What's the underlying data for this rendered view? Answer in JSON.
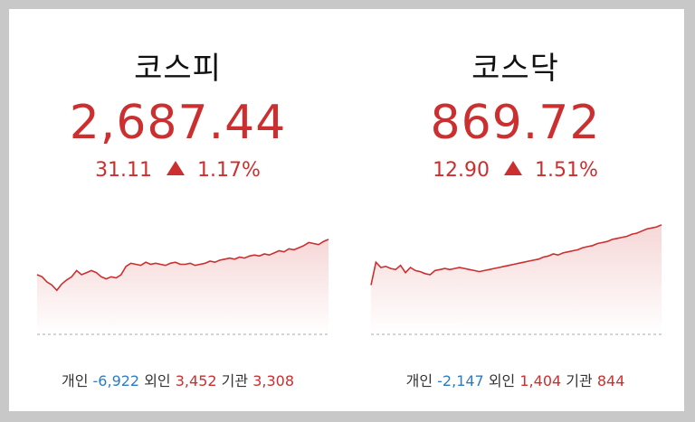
{
  "colors": {
    "up": "#cc2f2f",
    "down": "#2d7cc2",
    "text": "#333333"
  },
  "kospi": {
    "name": "코스피",
    "price": "2,687.44",
    "change": "31.11",
    "percent": "1.17%",
    "direction": "up",
    "investors": {
      "individual_label": "개인",
      "individual": "-6,922",
      "foreign_label": "외인",
      "foreign": "3,452",
      "institution_label": "기관",
      "institution": "3,308"
    }
  },
  "kosdaq": {
    "name": "코스닥",
    "price": "869.72",
    "change": "12.90",
    "percent": "1.51%",
    "direction": "up",
    "investors": {
      "individual_label": "개인",
      "individual": "-2,147",
      "foreign_label": "외인",
      "foreign": "1,404",
      "institution_label": "기관",
      "institution": "844"
    }
  },
  "chart_data": [
    {
      "type": "area",
      "series": [
        {
          "values": [
            40,
            38,
            33,
            30,
            25,
            31,
            35,
            38,
            44,
            40,
            42,
            44,
            42,
            38,
            36,
            38,
            37,
            40,
            48,
            51,
            50,
            49,
            52,
            50,
            51,
            50,
            49,
            51,
            52,
            50,
            50,
            51,
            49,
            50,
            51,
            53,
            52,
            54,
            55,
            56,
            55,
            57,
            56,
            58,
            59,
            58,
            60,
            59,
            61,
            63,
            62,
            65,
            64,
            66,
            68,
            71,
            70,
            69,
            72,
            74
          ]
        }
      ]
    },
    {
      "type": "area",
      "series": [
        {
          "values": [
            30,
            52,
            47,
            48,
            46,
            45,
            49,
            42,
            47,
            44,
            43,
            41,
            40,
            44,
            45,
            46,
            45,
            46,
            47,
            46,
            45,
            44,
            43,
            44,
            45,
            46,
            47,
            48,
            49,
            50,
            51,
            52,
            53,
            54,
            55,
            57,
            58,
            60,
            59,
            61,
            62,
            63,
            64,
            66,
            67,
            68,
            70,
            71,
            72,
            74,
            75,
            76,
            77,
            79,
            80,
            82,
            84,
            85,
            86,
            88
          ]
        }
      ]
    }
  ]
}
